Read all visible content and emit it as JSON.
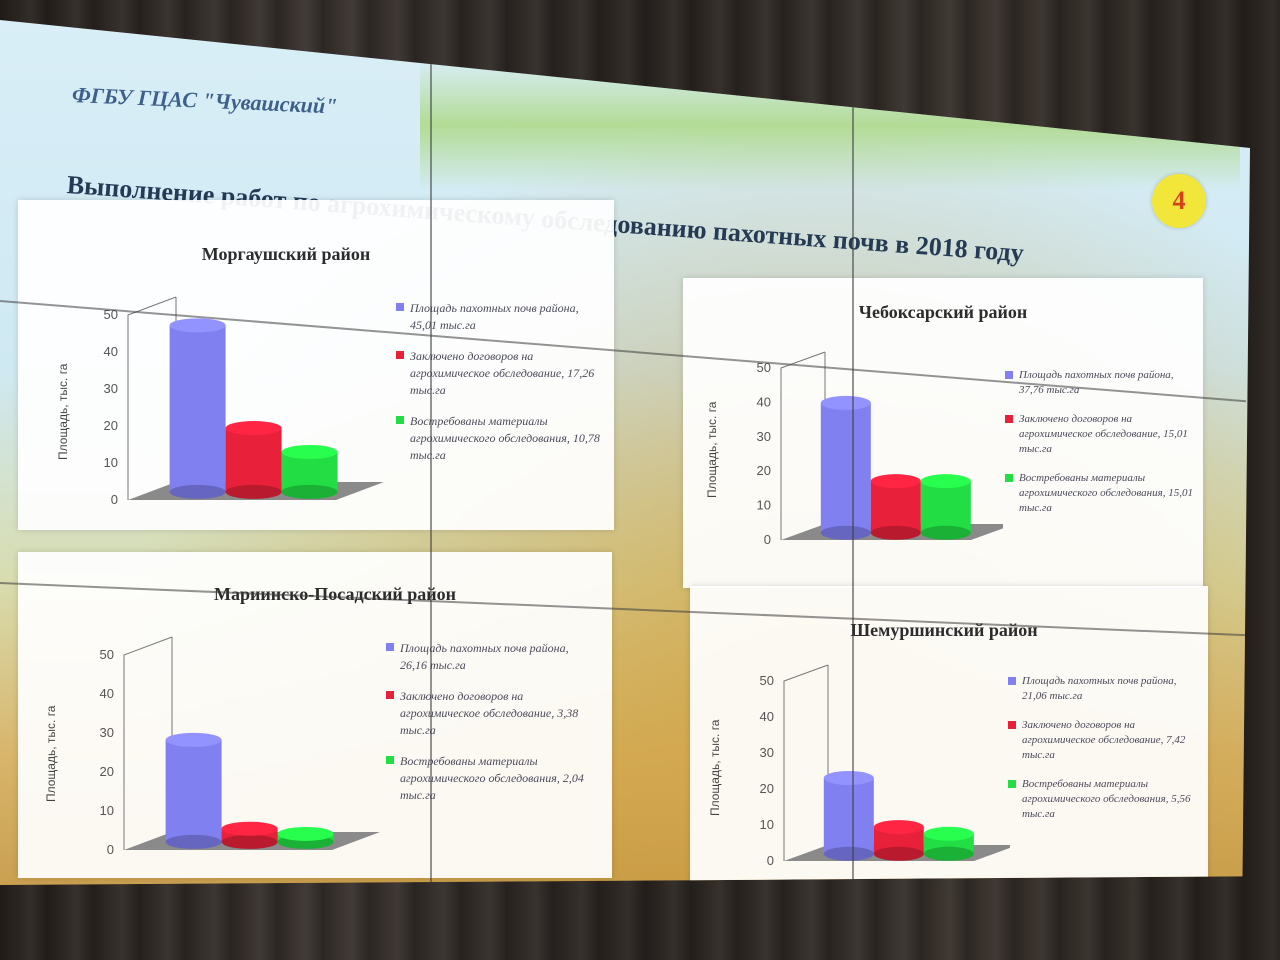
{
  "slide": {
    "org": "ФГБУ ГЦАС \"Чувашский\"",
    "title": "Выполнение работ по агрохимическому обследованию пахотных почв в 2018 году",
    "number": "4"
  },
  "colors": {
    "area": "#8080f0",
    "contracts": "#e8203a",
    "materials": "#22dd44"
  },
  "chart_data": [
    {
      "type": "bar",
      "title": "Моргаушский район",
      "ylabel": "Площадь, тыс. га",
      "ylim": [
        0,
        50
      ],
      "yticks": [
        "0",
        "10",
        "20",
        "30",
        "40",
        "50"
      ],
      "values": [
        45.01,
        17.26,
        10.78
      ],
      "legend": [
        "Площадь пахотных почв района, 45,01 тыс.га",
        "Заключено договоров на агрохимическое обследование, 17,26 тыс.га",
        "Востребованы материалы агрохимического обследования, 10,78 тыс.га"
      ]
    },
    {
      "type": "bar",
      "title": "Чебоксарский район",
      "ylabel": "Площадь, тыс. га",
      "ylim": [
        0,
        50
      ],
      "yticks": [
        "0",
        "10",
        "20",
        "30",
        "40",
        "50"
      ],
      "values": [
        37.76,
        15.01,
        15.01
      ],
      "legend": [
        "Площадь пахотных почв района, 37,76 тыс.га",
        "Заключено договоров на агрохимическое обследование, 15,01 тыс.га",
        "Востребованы материалы агрохимического обследования, 15,01 тыс.га"
      ]
    },
    {
      "type": "bar",
      "title": "Мариинско-Посадский район",
      "ylabel": "Площадь, тыс. га",
      "ylim": [
        0,
        50
      ],
      "yticks": [
        "0",
        "10",
        "20",
        "30",
        "40",
        "50"
      ],
      "values": [
        26.16,
        3.38,
        2.04
      ],
      "legend": [
        "Площадь пахотных почв района, 26,16 тыс.га",
        "Заключено договоров на агрохимическое обследование, 3,38 тыс.га",
        "Востребованы материалы агрохимического обследования, 2,04 тыс.га"
      ]
    },
    {
      "type": "bar",
      "title": "Шемуршинский район",
      "ylabel": "Площадь, тыс. га",
      "ylim": [
        0,
        50
      ],
      "yticks": [
        "0",
        "10",
        "20",
        "30",
        "40",
        "50"
      ],
      "values": [
        21.06,
        7.42,
        5.56
      ],
      "legend": [
        "Площадь пахотных почв района, 21,06 тыс.га",
        "Заключено договоров на агрохимическое обследование, 7,42 тыс.га",
        "Востребованы материалы агрохимического обследования, 5,56 тыс.га"
      ]
    }
  ]
}
